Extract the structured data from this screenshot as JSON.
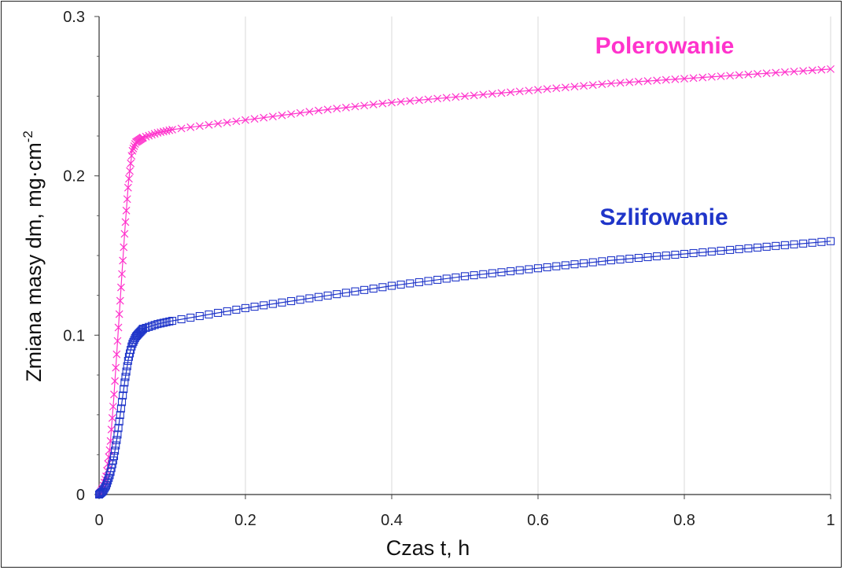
{
  "chart_data": {
    "type": "scatter",
    "xlabel": "Czas t, h",
    "ylabel": "Zmiana masy dm, mg·cm",
    "ylabel_superscript": "-2",
    "xlim": [
      0,
      1
    ],
    "ylim": [
      0,
      0.3
    ],
    "x_ticks": [
      "0",
      "0.2",
      "0.4",
      "0.6",
      "0.8",
      "1"
    ],
    "y_ticks": [
      "0",
      "0.1",
      "0.2",
      "0.3"
    ],
    "grid": "vertical",
    "series": [
      {
        "name": "Polerowanie",
        "color": "#ff33cc",
        "marker": "x",
        "x": [
          0,
          0.005,
          0.01,
          0.015,
          0.02,
          0.025,
          0.03,
          0.035,
          0.04,
          0.045,
          0.05,
          0.06,
          0.08,
          0.1,
          0.15,
          0.2,
          0.3,
          0.4,
          0.5,
          0.6,
          0.7,
          0.8,
          0.9,
          1.0
        ],
        "y": [
          0,
          0.004,
          0.012,
          0.03,
          0.06,
          0.095,
          0.13,
          0.165,
          0.195,
          0.215,
          0.221,
          0.224,
          0.227,
          0.229,
          0.232,
          0.235,
          0.241,
          0.246,
          0.25,
          0.254,
          0.258,
          0.261,
          0.264,
          0.267
        ]
      },
      {
        "name": "Szlifowanie",
        "color": "#1f35c9",
        "marker": "square",
        "x": [
          0,
          0.005,
          0.01,
          0.015,
          0.02,
          0.025,
          0.03,
          0.035,
          0.04,
          0.045,
          0.05,
          0.06,
          0.08,
          0.1,
          0.15,
          0.2,
          0.3,
          0.4,
          0.5,
          0.6,
          0.7,
          0.8,
          0.9,
          1.0
        ],
        "y": [
          0,
          0.002,
          0.006,
          0.013,
          0.023,
          0.037,
          0.054,
          0.071,
          0.085,
          0.094,
          0.099,
          0.104,
          0.107,
          0.109,
          0.113,
          0.117,
          0.124,
          0.131,
          0.137,
          0.142,
          0.147,
          0.151,
          0.155,
          0.159
        ]
      }
    ]
  }
}
